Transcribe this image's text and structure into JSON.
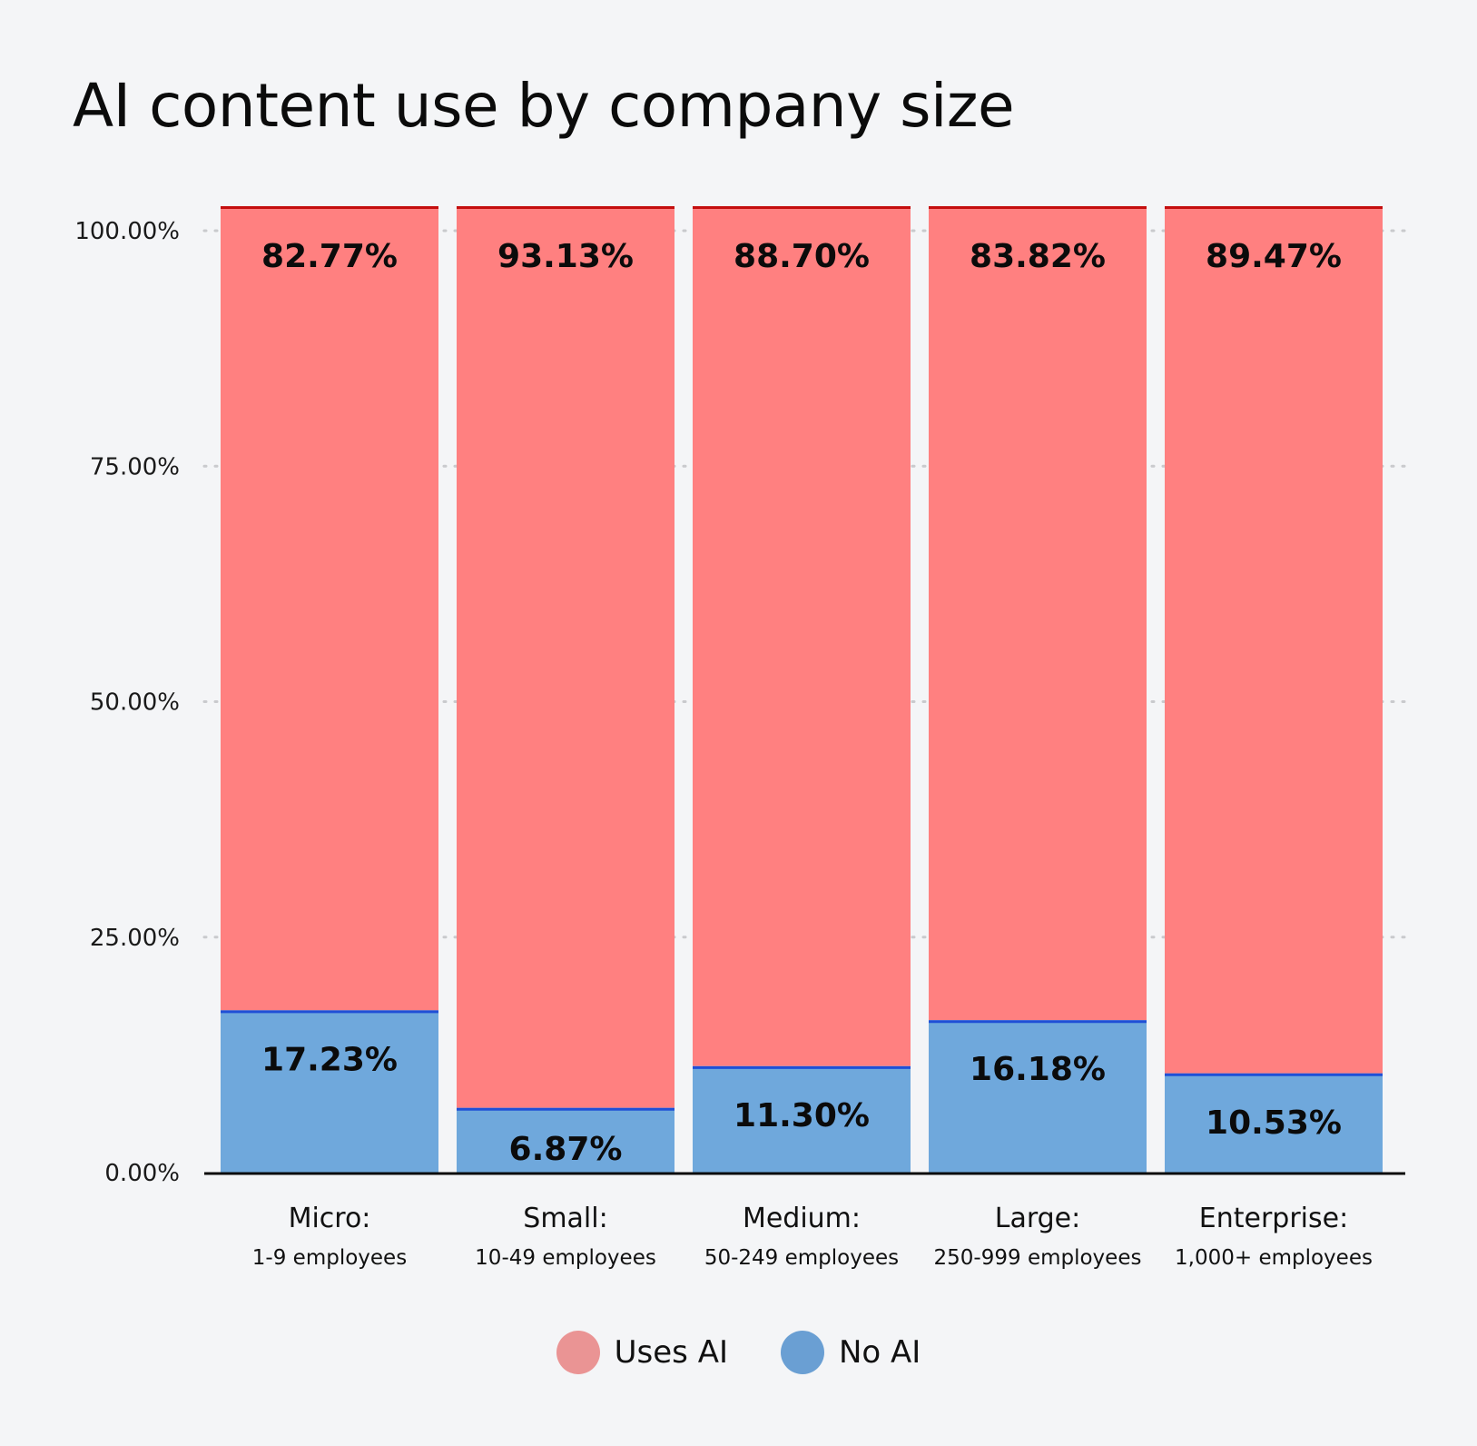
{
  "chart_data": {
    "type": "bar",
    "stacked": true,
    "title": "AI content use by company size",
    "categories": [
      {
        "name": "Micro:",
        "sub": "1-9 employees"
      },
      {
        "name": "Small:",
        "sub": "10-49 employees"
      },
      {
        "name": "Medium:",
        "sub": "50-249 employees"
      },
      {
        "name": "Large:",
        "sub": "250-999 employees"
      },
      {
        "name": "Enterprise:",
        "sub": "1,000+ employees"
      }
    ],
    "series": [
      {
        "name": "No AI",
        "color": "#6fa8dc",
        "edge_color": "#1f4fd6",
        "legend_color": "#6a9fd3",
        "values": [
          17.23,
          6.87,
          11.3,
          16.18,
          10.53
        ],
        "labels": [
          "17.23%",
          "6.87%",
          "11.30%",
          "16.18%",
          "10.53%"
        ]
      },
      {
        "name": "Uses AI",
        "color": "#ff8080",
        "edge_color": "#c40e0e",
        "legend_color": "#ea9494",
        "values": [
          82.77,
          93.13,
          88.7,
          83.82,
          89.47
        ],
        "labels": [
          "82.77%",
          "93.13%",
          "88.70%",
          "83.82%",
          "89.47%"
        ]
      }
    ],
    "y_ticks": [
      "0.00%",
      "25.00%",
      "50.00%",
      "75.00%",
      "100.00%"
    ],
    "ylim": [
      0,
      100
    ],
    "grid": true,
    "legend_position": "bottom"
  }
}
